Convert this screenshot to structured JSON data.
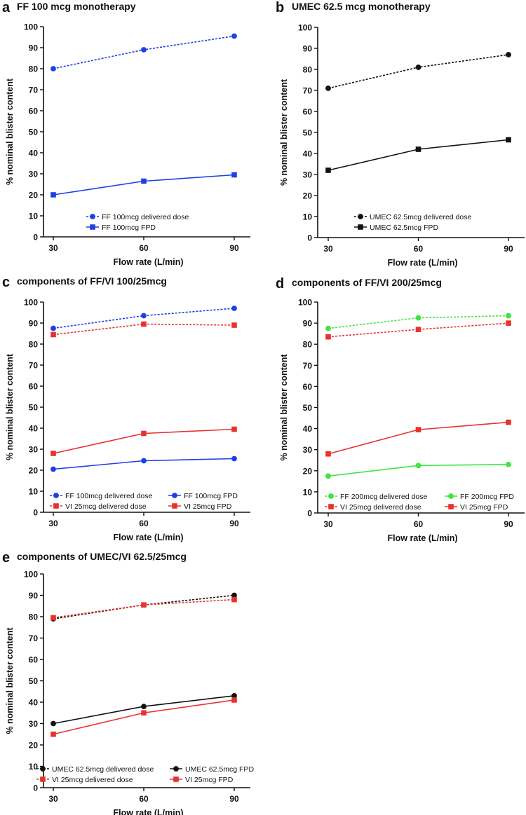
{
  "colors": {
    "blue": "#1f3fe6",
    "black": "#111111",
    "red": "#e8312f",
    "green": "#3ee63e"
  },
  "chart_data": [
    {
      "panel": "a",
      "title": "FF 100 mcg monotherapy",
      "type": "line",
      "xlabel": "Flow rate (L/min)",
      "ylabel": "% nominal blister content",
      "x": [
        30,
        60,
        90
      ],
      "xticks": [
        "30",
        "60",
        "90"
      ],
      "ylim": [
        0,
        100
      ],
      "yticks": [
        0,
        10,
        20,
        30,
        40,
        50,
        60,
        70,
        80,
        90,
        100
      ],
      "legend_columns": 1,
      "legend_position": "bottom-center",
      "series": [
        {
          "name": "FF 100mcg delivered dose",
          "values": [
            80,
            89,
            95.5
          ],
          "color": "#1f3fe6",
          "marker": "circle",
          "dashed": true
        },
        {
          "name": "FF 100mcg FPD",
          "values": [
            20,
            26.5,
            29.5
          ],
          "color": "#1f3fe6",
          "marker": "square",
          "dashed": false
        }
      ]
    },
    {
      "panel": "b",
      "title": "UMEC 62.5 mcg monotherapy",
      "type": "line",
      "xlabel": "Flow rate (L/min)",
      "ylabel": "% nominal blister content",
      "x": [
        30,
        60,
        90
      ],
      "xticks": [
        "30",
        "60",
        "90"
      ],
      "ylim": [
        0,
        100
      ],
      "yticks": [
        0,
        10,
        20,
        30,
        40,
        50,
        60,
        70,
        80,
        90,
        100
      ],
      "legend_columns": 1,
      "legend_position": "bottom-center",
      "series": [
        {
          "name": "UMEC 62.5mcg delivered dose",
          "values": [
            71,
            81,
            87
          ],
          "color": "#111111",
          "marker": "circle",
          "dashed": true
        },
        {
          "name": "UMEC 62.5mcg FPD",
          "values": [
            32,
            42,
            46.5
          ],
          "color": "#111111",
          "marker": "square",
          "dashed": false
        }
      ]
    },
    {
      "panel": "c",
      "title": "components of FF/VI 100/25mcg",
      "type": "line",
      "xlabel": "Flow rate (L/min)",
      "ylabel": "% nominal blister content",
      "x": [
        30,
        60,
        90
      ],
      "xticks": [
        "30",
        "60",
        "90"
      ],
      "ylim": [
        0,
        100
      ],
      "yticks": [
        0,
        10,
        20,
        30,
        40,
        50,
        60,
        70,
        80,
        90,
        100
      ],
      "legend_columns": 2,
      "legend_position": "bottom-center",
      "series": [
        {
          "name": "FF 100mcg delivered dose",
          "values": [
            87.5,
            93.5,
            97
          ],
          "color": "#1f3fe6",
          "marker": "circle",
          "dashed": true
        },
        {
          "name": "FF 100mcg FPD",
          "values": [
            20.5,
            24.5,
            25.5
          ],
          "color": "#1f3fe6",
          "marker": "circle",
          "dashed": false
        },
        {
          "name": "VI 25mcg delivered dose",
          "values": [
            84.5,
            89.5,
            89
          ],
          "color": "#e8312f",
          "marker": "square",
          "dashed": true
        },
        {
          "name": "VI 25mcg FPD",
          "values": [
            28,
            37.5,
            39.5
          ],
          "color": "#e8312f",
          "marker": "square",
          "dashed": false
        }
      ]
    },
    {
      "panel": "d",
      "title": "components of FF/VI 200/25mcg",
      "type": "line",
      "xlabel": "Flow rate (L/min)",
      "ylabel": "% nominal blister content",
      "x": [
        30,
        60,
        90
      ],
      "xticks": [
        "30",
        "60",
        "90"
      ],
      "ylim": [
        0,
        100
      ],
      "yticks": [
        0,
        10,
        20,
        30,
        40,
        50,
        60,
        70,
        80,
        90,
        100
      ],
      "legend_columns": 2,
      "legend_position": "bottom-center",
      "series": [
        {
          "name": "FF 200mcg delivered dose",
          "values": [
            87.5,
            92.5,
            93.5
          ],
          "color": "#3ee63e",
          "marker": "circle",
          "dashed": true
        },
        {
          "name": "FF 200mcg FPD",
          "values": [
            17.5,
            22.5,
            23
          ],
          "color": "#3ee63e",
          "marker": "circle",
          "dashed": false
        },
        {
          "name": "VI 25mcg delivered dose",
          "values": [
            83.5,
            87,
            90
          ],
          "color": "#e8312f",
          "marker": "square",
          "dashed": true
        },
        {
          "name": "VI 25mcg FPD",
          "values": [
            28,
            39.5,
            43
          ],
          "color": "#e8312f",
          "marker": "square",
          "dashed": false
        }
      ]
    },
    {
      "panel": "e",
      "title": "components of UMEC/VI 62.5/25mcg",
      "type": "line",
      "xlabel": "Flow rate (L/min)",
      "ylabel": "% nominal blister content",
      "x": [
        30,
        60,
        90
      ],
      "xticks": [
        "30",
        "60",
        "90"
      ],
      "ylim": [
        0,
        100
      ],
      "yticks": [
        0,
        10,
        20,
        30,
        40,
        50,
        60,
        70,
        80,
        90,
        100
      ],
      "legend_columns": 2,
      "legend_position": "bottom-center",
      "series": [
        {
          "name": "UMEC 62.5mcg delivered dose",
          "values": [
            79,
            85.5,
            90
          ],
          "color": "#111111",
          "marker": "circle",
          "dashed": true
        },
        {
          "name": "UMEC 62.5mcg FPD",
          "values": [
            30,
            38,
            43
          ],
          "color": "#111111",
          "marker": "circle",
          "dashed": false
        },
        {
          "name": "VI 25mcg delivered dose",
          "values": [
            79.5,
            85.5,
            88
          ],
          "color": "#e8312f",
          "marker": "square",
          "dashed": true
        },
        {
          "name": "VI 25mcg FPD",
          "values": [
            25,
            35,
            41
          ],
          "color": "#e8312f",
          "marker": "square",
          "dashed": false
        }
      ]
    }
  ]
}
